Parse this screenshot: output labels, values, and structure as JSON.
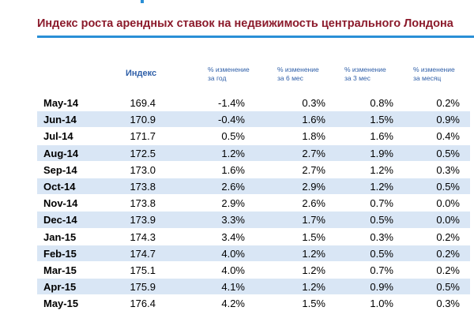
{
  "title": "Индекс роста арендных ставок на недвижимость центрального Лондона",
  "colors": {
    "title": "#8b1a2b",
    "accent": "#2a8fd6",
    "header": "#2f5fa8",
    "row_stripe": "#d9e6f5"
  },
  "headers": {
    "index": "Индекс",
    "year": [
      "% изменение",
      "за год"
    ],
    "six_month": [
      "% изменение",
      "за 6 мес"
    ],
    "three_month": [
      "% изменение",
      "за 3 мес"
    ],
    "month": [
      "% изменение",
      "за месяц"
    ]
  },
  "chart_data": {
    "type": "table",
    "title": "Индекс роста арендных ставок на недвижимость центрального Лондона",
    "columns": [
      "",
      "Индекс",
      "% изменение за год",
      "% изменение за 6 мес",
      "% изменение за 3 мес",
      "% изменение за месяц"
    ],
    "rows": [
      [
        "May-14",
        "169.4",
        "-1.4%",
        "0.3%",
        "0.8%",
        "0.2%"
      ],
      [
        "Jun-14",
        "170.9",
        "-0.4%",
        "1.6%",
        "1.5%",
        "0.9%"
      ],
      [
        "Jul-14",
        "171.7",
        "0.5%",
        "1.8%",
        "1.6%",
        "0.4%"
      ],
      [
        "Aug-14",
        "172.5",
        "1.2%",
        "2.7%",
        "1.9%",
        "0.5%"
      ],
      [
        "Sep-14",
        "173.0",
        "1.6%",
        "2.7%",
        "1.2%",
        "0.3%"
      ],
      [
        "Oct-14",
        "173.8",
        "2.6%",
        "2.9%",
        "1.2%",
        "0.5%"
      ],
      [
        "Nov-14",
        "173.8",
        "2.9%",
        "2.6%",
        "0.7%",
        "0.0%"
      ],
      [
        "Dec-14",
        "173.9",
        "3.3%",
        "1.7%",
        "0.5%",
        "0.0%"
      ],
      [
        "Jan-15",
        "174.3",
        "3.4%",
        "1.5%",
        "0.3%",
        "0.2%"
      ],
      [
        "Feb-15",
        "174.7",
        "4.0%",
        "1.2%",
        "0.5%",
        "0.2%"
      ],
      [
        "Mar-15",
        "175.1",
        "4.0%",
        "1.2%",
        "0.7%",
        "0.2%"
      ],
      [
        "Apr-15",
        "175.9",
        "4.1%",
        "1.2%",
        "0.9%",
        "0.5%"
      ],
      [
        "May-15",
        "176.4",
        "4.2%",
        "1.5%",
        "1.0%",
        "0.3%"
      ]
    ]
  }
}
